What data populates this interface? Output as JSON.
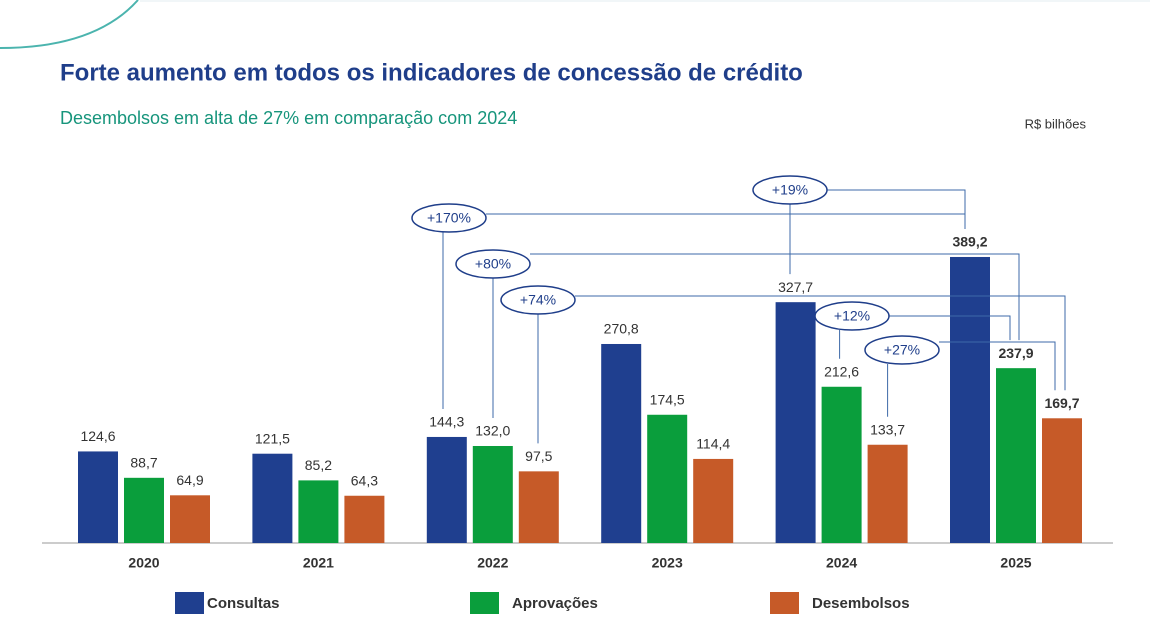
{
  "chart_data": {
    "type": "bar",
    "title": "Forte aumento em todos os indicadores de concessão de crédito",
    "subtitle": "Desembolsos em alta de 27% em comparação com 2024",
    "unit_label": "R$ bilhões",
    "categories": [
      "2020",
      "2021",
      "2022",
      "2023",
      "2024",
      "2025"
    ],
    "series": [
      {
        "name": "Consultas",
        "color": "#1f3f8f",
        "values": [
          124.6,
          121.5,
          144.3,
          270.8,
          327.7,
          389.2
        ],
        "value_labels": [
          "124,6",
          "121,5",
          "144,3",
          "270,8",
          "327,7",
          "389,2"
        ]
      },
      {
        "name": "Aprovações",
        "color": "#0a9e3c",
        "values": [
          88.7,
          85.2,
          132.0,
          174.5,
          212.6,
          237.9
        ],
        "value_labels": [
          "88,7",
          "85,2",
          "132,0",
          "174,5",
          "212,6",
          "237,9"
        ]
      },
      {
        "name": "Desembolsos",
        "color": "#c65a28",
        "values": [
          64.9,
          64.3,
          97.5,
          114.4,
          133.7,
          169.7
        ],
        "value_labels": [
          "64,9",
          "64,3",
          "97,5",
          "114,4",
          "133,7",
          "169,7"
        ]
      }
    ],
    "annotations": [
      "+170%",
      "+80%",
      "+74%",
      "+19%",
      "+12%",
      "+27%"
    ]
  }
}
